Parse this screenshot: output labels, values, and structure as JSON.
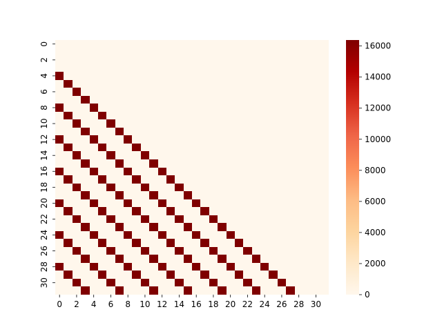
{
  "chart_data": {
    "type": "heatmap",
    "title": "",
    "xlabel": "",
    "ylabel": "",
    "rows": 32,
    "cols": 32,
    "x_tick_labels": [
      "0",
      "2",
      "4",
      "6",
      "8",
      "10",
      "12",
      "14",
      "16",
      "18",
      "20",
      "22",
      "24",
      "26",
      "28",
      "30"
    ],
    "y_tick_labels": [
      "0",
      "2",
      "4",
      "6",
      "8",
      "10",
      "12",
      "14",
      "16",
      "18",
      "20",
      "22",
      "24",
      "26",
      "28",
      "30"
    ],
    "colorbar_tick_labels": [
      "0",
      "2000",
      "4000",
      "6000",
      "8000",
      "10000",
      "12000",
      "14000",
      "16000"
    ],
    "colorbar_ticks": [
      0,
      2000,
      4000,
      6000,
      8000,
      10000,
      12000,
      14000,
      16000
    ],
    "vmin": 0,
    "vmax": 16384,
    "high_value": 16384,
    "low_value": 0,
    "pattern_rule": "value[r][c] = 16384 when c <= r - 4 and (r - c) % 4 == 0, else 0",
    "colormap": "OrRd",
    "colors": {
      "low": "#fff7ec",
      "high": "#7f0000"
    }
  }
}
